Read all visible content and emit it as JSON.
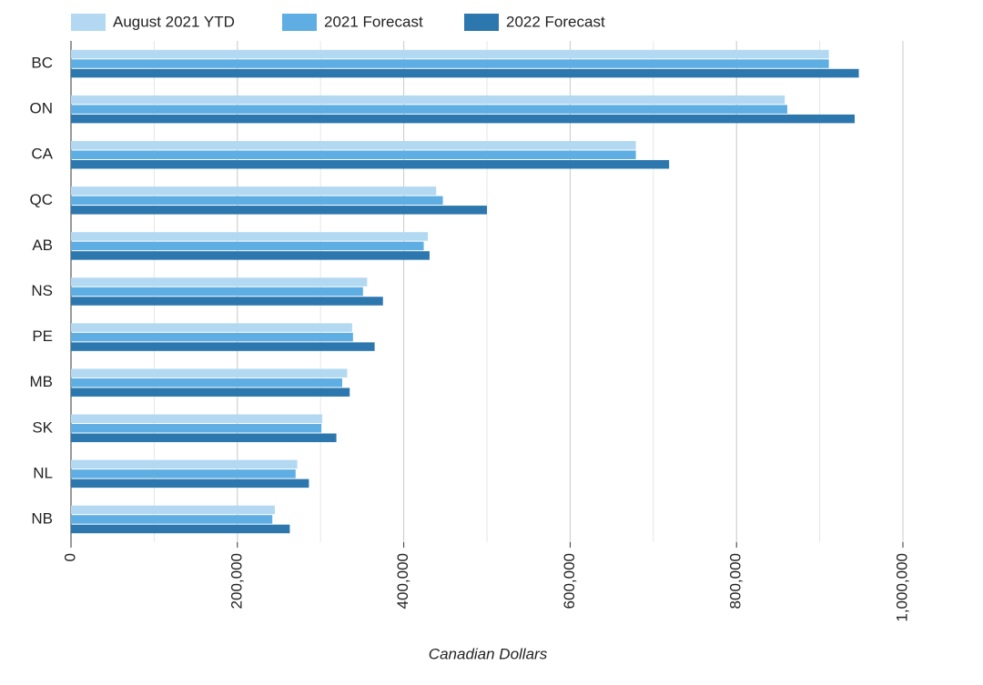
{
  "chart_data": {
    "type": "hbar",
    "x_label": "Canadian Dollars",
    "categories": [
      "BC",
      "ON",
      "CA",
      "QC",
      "AB",
      "NS",
      "PE",
      "MB",
      "SK",
      "NL",
      "NB"
    ],
    "series": [
      {
        "name": "August 2021 YTD",
        "color": "#b3d9f2",
        "values": [
          911000,
          858000,
          679000,
          439000,
          429000,
          356000,
          338000,
          332000,
          302000,
          272000,
          245000
        ]
      },
      {
        "name": "2021 Forecast",
        "color": "#5eaee3",
        "values": [
          911000,
          861000,
          679000,
          447000,
          424000,
          351000,
          339000,
          326000,
          301000,
          270000,
          242000
        ]
      },
      {
        "name": "2022 Forecast",
        "color": "#2c77ad",
        "values": [
          947000,
          942000,
          719000,
          500000,
          431000,
          375000,
          365000,
          335000,
          319000,
          286000,
          263000
        ]
      }
    ],
    "xlim": [
      0,
      1000000
    ],
    "xticks": [
      0,
      {
        "value": 200000,
        "label": "200,000"
      },
      {
        "value": 400000,
        "label": "400,000"
      },
      {
        "value": 600000,
        "label": "600,000"
      },
      {
        "value": 800000,
        "label": "800,000"
      },
      {
        "value": 1000000,
        "label": "1,000,000"
      }
    ],
    "grid": true,
    "minor_grid": true,
    "legend": "top"
  }
}
